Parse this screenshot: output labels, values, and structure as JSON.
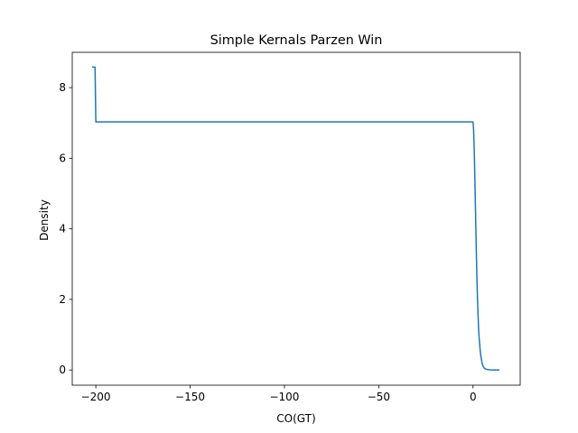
{
  "chart_data": {
    "type": "line",
    "title": "Simple Kernals Parzen Win",
    "xlabel": "CO(GT)",
    "ylabel": "Density",
    "xlim": [
      -212.5,
      25
    ],
    "ylim": [
      -0.43,
      9.0
    ],
    "xticks": [
      -200,
      -150,
      -100,
      -50,
      0
    ],
    "xtick_labels": [
      "−200",
      "−150",
      "−100",
      "−50",
      "0"
    ],
    "yticks": [
      0,
      2,
      4,
      6,
      8
    ],
    "ytick_labels": [
      "0",
      "2",
      "4",
      "6",
      "8"
    ],
    "grid": false,
    "line_color": "#1f77b4",
    "series": [
      {
        "x": [
          -202,
          -200.4,
          -200.4,
          -200,
          -199.5,
          -100,
          0,
          0.3,
          0.6,
          0.9,
          1.2,
          1.5,
          1.8,
          2.1,
          2.4,
          2.7,
          3.0,
          3.4,
          3.8,
          4.2,
          4.6,
          5.0,
          5.5,
          6.0,
          7.0,
          8.0,
          9.0,
          10.0,
          12.0,
          14.0
        ],
        "y": [
          8.58,
          8.58,
          8.55,
          7.03,
          7.03,
          7.03,
          7.03,
          6.8,
          6.3,
          5.6,
          4.8,
          4.0,
          3.2,
          2.5,
          1.95,
          1.5,
          1.1,
          0.8,
          0.55,
          0.38,
          0.25,
          0.15,
          0.09,
          0.05,
          0.02,
          0.01,
          0.005,
          0.002,
          0.0,
          0.0
        ]
      }
    ]
  }
}
